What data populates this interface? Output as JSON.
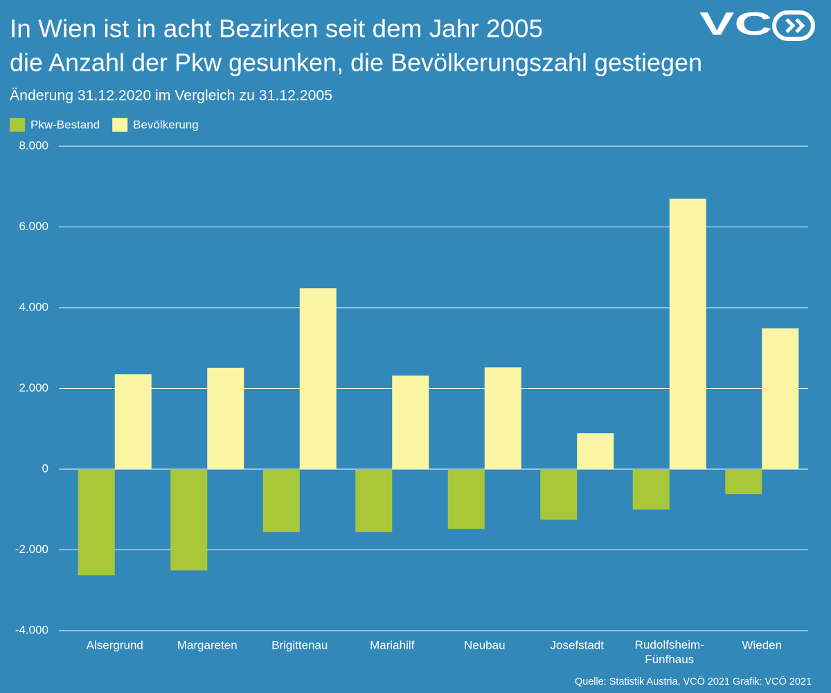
{
  "chart_data": {
    "type": "bar",
    "title": [
      "In Wien ist in acht Bezirken seit dem Jahr 2005",
      "die Anzahl der Pkw gesunken, die Bevölkerungszahl gestiegen"
    ],
    "subtitle": "Änderung 31.12.2020 im Vergleich zu 31.12.2005",
    "logo": "VC",
    "source": "Quelle: Statistik Austria, VCÖ 2021 Grafik: VCÖ 2021",
    "categories": [
      "Alsergrund",
      "Margareten",
      "Brigittenau",
      "Mariahilf",
      "Neubau",
      "Josefstadt",
      "Rudolfsheim-Fünfhaus",
      "Wieden"
    ],
    "series": [
      {
        "name": "Pkw-Bestand",
        "color": "#a8c83a",
        "values": [
          -2630,
          -2510,
          -1560,
          -1560,
          -1480,
          -1250,
          -1000,
          -620
        ]
      },
      {
        "name": "Bevölkerung",
        "color": "#fbf5a6",
        "values": [
          2350,
          2510,
          4480,
          2320,
          2520,
          890,
          6700,
          3490
        ]
      }
    ],
    "ylim": [
      -4000,
      8000
    ],
    "yticks": [
      {
        "value": -4000,
        "label": "-4.000"
      },
      {
        "value": -2000,
        "label": "-2.000"
      },
      0,
      {
        "value": 2000,
        "label": "2.000"
      },
      {
        "value": 4000,
        "label": "4.000"
      },
      {
        "value": 6000,
        "label": "6.000"
      },
      {
        "value": 8000,
        "label": "8.000"
      }
    ],
    "grid": true,
    "legend": "top-left"
  }
}
